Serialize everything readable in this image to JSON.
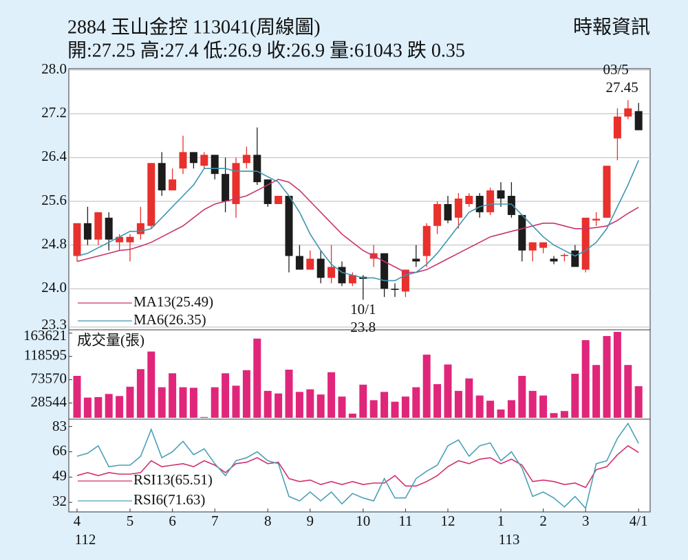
{
  "header": {
    "title": "2884  玉山金控 113041(周線圖)",
    "quote": "開:27.25 高:27.4 低:26.9 收:26.9 量:61043 跌 0.35",
    "source": "時報資訊"
  },
  "chart_data": [
    {
      "type": "candlestick",
      "categories": [
        "4",
        null,
        null,
        null,
        null,
        "5",
        null,
        null,
        null,
        "6",
        null,
        null,
        null,
        "7",
        null,
        null,
        null,
        null,
        "8",
        null,
        null,
        null,
        "9",
        null,
        null,
        null,
        null,
        "10",
        null,
        null,
        null,
        "11",
        null,
        null,
        null,
        "12",
        null,
        null,
        null,
        null,
        "1",
        null,
        null,
        null,
        "2",
        null,
        null,
        null,
        "3",
        null,
        null,
        null,
        null,
        "4/1"
      ],
      "year_labels": [
        "112",
        null,
        null,
        null,
        null,
        null,
        null,
        null,
        null,
        null,
        null,
        null,
        null,
        null,
        null,
        null,
        null,
        null,
        null,
        null,
        null,
        null,
        null,
        null,
        null,
        null,
        null,
        null,
        null,
        null,
        null,
        null,
        null,
        null,
        null,
        null,
        null,
        null,
        null,
        null,
        "113",
        null,
        null,
        null,
        null,
        null,
        null,
        null,
        null,
        null,
        null,
        null,
        null,
        null
      ],
      "open": [
        24.6,
        25.2,
        24.9,
        25.3,
        24.85,
        24.85,
        25.0,
        25.15,
        26.3,
        25.8,
        26.2,
        26.5,
        26.25,
        26.45,
        26.1,
        25.55,
        26.3,
        26.45,
        26.0,
        25.55,
        25.7,
        24.6,
        24.35,
        24.55,
        24.2,
        24.4,
        24.1,
        24.22,
        24.55,
        24.65,
        24.0,
        23.95,
        24.55,
        24.6,
        25.15,
        25.55,
        25.3,
        25.55,
        25.7,
        25.4,
        25.8,
        25.7,
        25.35,
        24.7,
        24.75,
        24.55,
        24.6,
        24.7,
        24.35,
        25.25,
        25.3,
        26.75,
        27.15,
        27.25
      ],
      "high": [
        25.2,
        25.5,
        25.4,
        25.4,
        25.0,
        25.0,
        25.5,
        26.3,
        26.5,
        26.2,
        26.8,
        26.5,
        26.5,
        26.45,
        26.4,
        26.4,
        26.6,
        26.95,
        26.0,
        25.7,
        25.7,
        24.8,
        24.7,
        24.7,
        24.8,
        24.5,
        24.3,
        24.25,
        24.8,
        24.65,
        24.1,
        24.35,
        24.8,
        25.2,
        25.6,
        25.7,
        25.75,
        25.75,
        25.75,
        25.85,
        25.95,
        25.95,
        25.35,
        24.85,
        24.85,
        24.6,
        24.65,
        24.8,
        25.3,
        25.4,
        26.25,
        27.3,
        27.45,
        27.4
      ],
      "low": [
        24.5,
        24.8,
        24.8,
        24.7,
        24.7,
        24.5,
        24.9,
        25.1,
        25.7,
        25.8,
        26.1,
        26.2,
        26.2,
        26.0,
        25.4,
        25.3,
        26.2,
        25.9,
        25.5,
        25.55,
        24.3,
        24.35,
        24.35,
        24.1,
        24.1,
        24.05,
        24.05,
        23.8,
        24.4,
        23.85,
        23.85,
        23.85,
        24.4,
        24.4,
        25.0,
        25.2,
        25.1,
        25.5,
        25.3,
        25.35,
        25.5,
        25.3,
        24.5,
        24.5,
        24.65,
        24.45,
        24.5,
        24.4,
        24.3,
        25.15,
        25.3,
        26.35,
        27.1,
        26.9
      ],
      "close": [
        25.2,
        24.9,
        25.4,
        24.9,
        24.95,
        24.95,
        25.2,
        26.3,
        25.8,
        26.0,
        26.5,
        26.3,
        26.45,
        26.1,
        25.6,
        26.3,
        26.45,
        25.95,
        25.55,
        25.7,
        24.6,
        24.35,
        24.55,
        24.2,
        24.4,
        24.1,
        24.25,
        24.18,
        24.65,
        24.0,
        23.98,
        24.35,
        24.5,
        25.15,
        25.55,
        25.25,
        25.65,
        25.7,
        25.4,
        25.8,
        25.65,
        25.35,
        24.7,
        24.85,
        24.85,
        24.5,
        24.62,
        24.4,
        25.3,
        25.28,
        26.25,
        27.15,
        27.3,
        26.9
      ],
      "up_color": "#e8302d",
      "down_color": "#1c1c1c",
      "series": [
        {
          "name": "MA13(25.49)",
          "color": "#c8326e",
          "values": [
            24.5,
            24.55,
            24.6,
            24.65,
            24.7,
            24.72,
            24.78,
            24.85,
            24.95,
            25.05,
            25.15,
            25.3,
            25.45,
            25.55,
            25.6,
            25.65,
            25.7,
            25.8,
            25.9,
            26.0,
            25.95,
            25.8,
            25.6,
            25.4,
            25.2,
            25.0,
            24.85,
            24.7,
            24.6,
            24.5,
            24.4,
            24.3,
            24.3,
            24.35,
            24.45,
            24.55,
            24.65,
            24.75,
            24.85,
            24.95,
            25.0,
            25.05,
            25.1,
            25.15,
            25.2,
            25.2,
            25.15,
            25.1,
            25.1,
            25.12,
            25.15,
            25.25,
            25.38,
            25.49
          ]
        },
        {
          "name": "MA6(26.35)",
          "color": "#3a95b0",
          "values": [
            24.6,
            24.65,
            24.75,
            24.85,
            24.95,
            25.05,
            25.05,
            25.1,
            25.3,
            25.5,
            25.7,
            25.9,
            26.2,
            26.2,
            26.2,
            26.15,
            26.15,
            26.15,
            26.05,
            25.95,
            25.7,
            25.4,
            25.0,
            24.7,
            24.45,
            24.3,
            24.25,
            24.2,
            24.2,
            24.15,
            24.15,
            24.25,
            24.3,
            24.45,
            24.65,
            24.9,
            25.15,
            25.4,
            25.5,
            25.55,
            25.55,
            25.55,
            25.35,
            25.15,
            24.95,
            24.8,
            24.7,
            24.6,
            24.7,
            24.85,
            25.1,
            25.5,
            25.9,
            26.35
          ]
        }
      ],
      "ylim": [
        23.3,
        28.0
      ],
      "yticks": [
        23.3,
        {
          "value": 24,
          "label": "24.0"
        },
        24.8,
        25.6,
        26.4,
        27.2,
        {
          "value": 28,
          "label": "28.0"
        }
      ],
      "grid": true,
      "annotations": [
        {
          "date": "03/5",
          "value": 27.45
        },
        {
          "date": "10/1",
          "value": 23.8
        }
      ]
    },
    {
      "type": "bar",
      "title": "成交量(張)",
      "color": "#e0267a",
      "values": [
        81000,
        39000,
        40000,
        46000,
        42000,
        60000,
        94000,
        128000,
        59000,
        86000,
        59000,
        58000,
        1500,
        59000,
        86000,
        62000,
        92000,
        153000,
        52000,
        47000,
        93000,
        50000,
        55000,
        45000,
        88000,
        41000,
        8000,
        64000,
        34000,
        50000,
        31000,
        41000,
        59000,
        122000,
        65000,
        103000,
        52000,
        76000,
        43000,
        33000,
        16000,
        34000,
        81000,
        52000,
        43000,
        9000,
        13000,
        85000,
        150000,
        102000,
        158000,
        166000,
        102000,
        61043
      ],
      "ylim": [
        0,
        170000
      ],
      "yticks": [
        28544,
        73570,
        118595,
        163621
      ]
    },
    {
      "type": "line",
      "series": [
        {
          "name": "RSI13(65.51)",
          "color": "#d42d6a",
          "values": [
            50,
            52,
            50,
            52,
            51,
            51,
            52,
            60,
            56,
            57,
            58,
            56,
            60,
            57,
            52,
            58,
            59,
            62,
            58,
            59,
            48,
            46,
            47,
            44,
            46,
            44,
            46,
            44,
            45,
            45,
            50,
            43,
            43,
            46,
            50,
            56,
            60,
            58,
            61,
            62,
            58,
            61,
            57,
            46,
            47,
            46,
            44,
            45,
            42,
            54,
            56,
            64,
            70,
            65.51
          ]
        },
        {
          "name": "RSI6(71.63)",
          "color": "#4aa0b8",
          "values": [
            63,
            65,
            70,
            56,
            57,
            57,
            63,
            81,
            62,
            66,
            73,
            64,
            68,
            58,
            50,
            60,
            62,
            66,
            60,
            58,
            36,
            33,
            39,
            33,
            39,
            31,
            38,
            35,
            33,
            48,
            35,
            35,
            48,
            53,
            57,
            70,
            74,
            63,
            70,
            72,
            60,
            66,
            55,
            36,
            39,
            35,
            29,
            36,
            28,
            58,
            60,
            75,
            85,
            71.63
          ]
        }
      ],
      "ylim": [
        27,
        87
      ],
      "yticks": [
        32,
        49,
        66,
        83
      ]
    }
  ]
}
